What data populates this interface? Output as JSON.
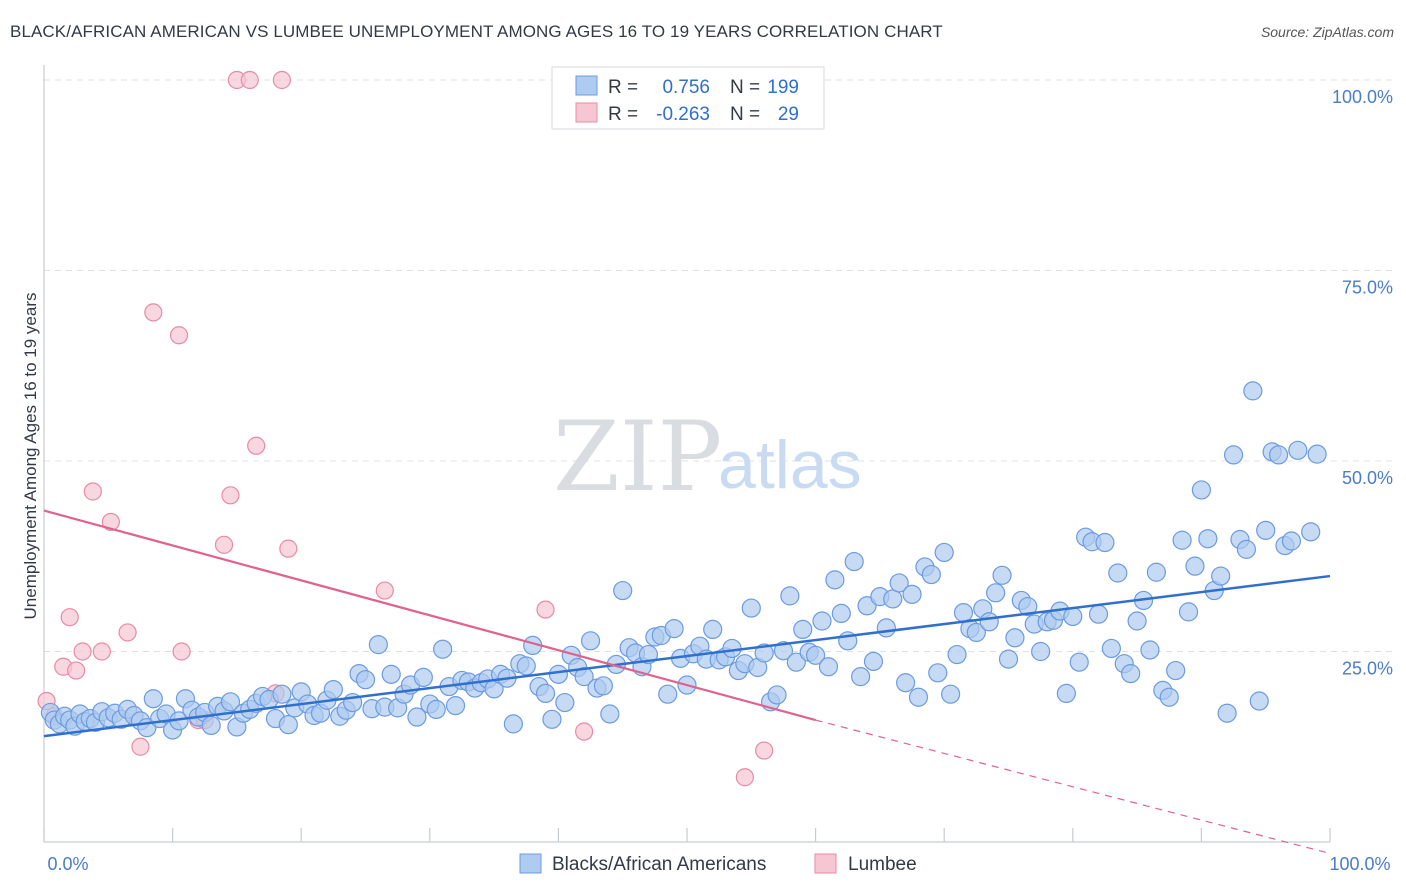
{
  "title": "BLACK/AFRICAN AMERICAN VS LUMBEE UNEMPLOYMENT AMONG AGES 16 TO 19 YEARS CORRELATION CHART",
  "source": "Source: ZipAtlas.com",
  "watermark": {
    "zip": "ZIP",
    "atlas": "atlas"
  },
  "colors": {
    "blue_fill": "#aecbf0",
    "blue_stroke": "#6b9be0",
    "blue_line": "#2f6fcf",
    "pink_fill": "#f7c6d3",
    "pink_stroke": "#e88aa6",
    "pink_line": "#e0628f",
    "grid": "#dde1e6",
    "tick_text": "#4a7cc9"
  },
  "legend": {
    "rows": [
      {
        "r_label": "R =",
        "r_value": "0.756",
        "n_label": "N =",
        "n_value": "199"
      },
      {
        "r_label": "R =",
        "r_value": "-0.263",
        "n_label": "N =",
        "n_value": "29"
      }
    ]
  },
  "chart_data": {
    "type": "scatter",
    "title": "BLACK/AFRICAN AMERICAN VS LUMBEE UNEMPLOYMENT AMONG AGES 16 TO 19 YEARS CORRELATION CHART",
    "xlabel": "",
    "ylabel": "Unemployment Among Ages 16 to 19 years",
    "xlim": [
      0,
      100
    ],
    "ylim": [
      0,
      100
    ],
    "x_tick_labels": [
      "0.0%",
      "100.0%"
    ],
    "y_tick_labels": [
      "100.0%",
      "75.0%",
      "50.0%",
      "25.0%"
    ],
    "y_ticks": [
      100,
      75,
      50,
      25
    ],
    "grid": true,
    "legend_position": "bottom",
    "series": [
      {
        "name": "Blacks/African Americans",
        "color": "#aecbf0",
        "trend": {
          "x": [
            0,
            100
          ],
          "y": [
            13.9,
            34.9
          ],
          "dashed_from": null
        },
        "points": [
          [
            0.5,
            17.0
          ],
          [
            0.8,
            16.0
          ],
          [
            1.2,
            15.5
          ],
          [
            1.6,
            16.5
          ],
          [
            2.0,
            16.0
          ],
          [
            2.4,
            15.2
          ],
          [
            2.8,
            16.8
          ],
          [
            3.2,
            15.8
          ],
          [
            3.6,
            16.2
          ],
          [
            4.0,
            15.7
          ],
          [
            4.5,
            17.1
          ],
          [
            5.0,
            16.3
          ],
          [
            5.5,
            16.9
          ],
          [
            6.0,
            16.1
          ],
          [
            6.5,
            17.4
          ],
          [
            7.0,
            16.6
          ],
          [
            7.5,
            15.9
          ],
          [
            8.0,
            15.0
          ],
          [
            8.5,
            18.8
          ],
          [
            9.0,
            16.2
          ],
          [
            9.5,
            16.8
          ],
          [
            10.0,
            14.7
          ],
          [
            10.5,
            15.9
          ],
          [
            11.0,
            18.8
          ],
          [
            11.5,
            17.3
          ],
          [
            12.0,
            16.4
          ],
          [
            12.5,
            17.0
          ],
          [
            13.0,
            15.3
          ],
          [
            13.5,
            17.8
          ],
          [
            14.0,
            17.2
          ],
          [
            14.5,
            18.4
          ],
          [
            15.0,
            15.1
          ],
          [
            15.5,
            16.9
          ],
          [
            16.0,
            17.4
          ],
          [
            16.5,
            18.2
          ],
          [
            17.0,
            19.1
          ],
          [
            17.5,
            18.7
          ],
          [
            18.0,
            16.2
          ],
          [
            18.5,
            19.4
          ],
          [
            19.0,
            15.4
          ],
          [
            19.5,
            17.6
          ],
          [
            20.0,
            19.7
          ],
          [
            20.5,
            18.1
          ],
          [
            21.0,
            16.6
          ],
          [
            21.5,
            16.9
          ],
          [
            22.0,
            18.6
          ],
          [
            22.5,
            20.0
          ],
          [
            23.0,
            16.5
          ],
          [
            23.5,
            17.3
          ],
          [
            24.0,
            18.3
          ],
          [
            24.5,
            22.1
          ],
          [
            25.0,
            21.3
          ],
          [
            25.5,
            17.5
          ],
          [
            26.0,
            25.9
          ],
          [
            26.5,
            17.7
          ],
          [
            27.0,
            22.0
          ],
          [
            27.5,
            17.6
          ],
          [
            28.0,
            19.4
          ],
          [
            28.5,
            20.6
          ],
          [
            29.0,
            16.4
          ],
          [
            29.5,
            21.6
          ],
          [
            30.0,
            18.1
          ],
          [
            30.5,
            17.4
          ],
          [
            31.0,
            25.3
          ],
          [
            31.5,
            20.4
          ],
          [
            32.0,
            17.9
          ],
          [
            32.5,
            21.2
          ],
          [
            33.0,
            21.0
          ],
          [
            33.5,
            20.2
          ],
          [
            34.0,
            20.9
          ],
          [
            34.5,
            21.4
          ],
          [
            35.0,
            20.1
          ],
          [
            35.5,
            22.0
          ],
          [
            36.0,
            21.5
          ],
          [
            36.5,
            15.5
          ],
          [
            37.0,
            23.4
          ],
          [
            37.5,
            23.1
          ],
          [
            38.0,
            25.8
          ],
          [
            38.5,
            20.4
          ],
          [
            39.0,
            19.5
          ],
          [
            39.5,
            16.1
          ],
          [
            40.0,
            22.0
          ],
          [
            40.5,
            18.3
          ],
          [
            41.0,
            24.5
          ],
          [
            41.5,
            22.9
          ],
          [
            42.0,
            21.7
          ],
          [
            42.5,
            26.4
          ],
          [
            43.0,
            20.2
          ],
          [
            43.5,
            20.5
          ],
          [
            44.0,
            16.8
          ],
          [
            44.5,
            23.3
          ],
          [
            45.0,
            33.0
          ],
          [
            45.5,
            25.5
          ],
          [
            46.0,
            24.8
          ],
          [
            46.5,
            23.0
          ],
          [
            47.0,
            24.6
          ],
          [
            47.5,
            26.9
          ],
          [
            48.0,
            27.1
          ],
          [
            48.5,
            19.4
          ],
          [
            49.0,
            28.0
          ],
          [
            49.5,
            24.1
          ],
          [
            50.0,
            20.6
          ],
          [
            50.5,
            24.7
          ],
          [
            51.0,
            25.7
          ],
          [
            51.5,
            24.0
          ],
          [
            52.0,
            27.9
          ],
          [
            52.5,
            23.9
          ],
          [
            53.0,
            24.3
          ],
          [
            53.5,
            25.4
          ],
          [
            54.0,
            22.5
          ],
          [
            54.5,
            23.4
          ],
          [
            55.0,
            30.7
          ],
          [
            55.5,
            22.9
          ],
          [
            56.0,
            24.8
          ],
          [
            56.5,
            18.4
          ],
          [
            57.0,
            19.3
          ],
          [
            57.5,
            25.1
          ],
          [
            58.0,
            32.3
          ],
          [
            58.5,
            23.6
          ],
          [
            59.0,
            27.9
          ],
          [
            59.5,
            24.9
          ],
          [
            60.0,
            24.5
          ],
          [
            60.5,
            29.0
          ],
          [
            61.0,
            23.0
          ],
          [
            61.5,
            34.4
          ],
          [
            62.0,
            30.0
          ],
          [
            62.5,
            26.4
          ],
          [
            63.0,
            36.8
          ],
          [
            63.5,
            21.7
          ],
          [
            64.0,
            31.0
          ],
          [
            64.5,
            23.7
          ],
          [
            65.0,
            32.2
          ],
          [
            65.5,
            28.1
          ],
          [
            66.0,
            31.9
          ],
          [
            66.5,
            34.0
          ],
          [
            67.0,
            20.9
          ],
          [
            67.5,
            32.5
          ],
          [
            68.0,
            19.0
          ],
          [
            68.5,
            36.1
          ],
          [
            69.0,
            35.1
          ],
          [
            69.5,
            22.2
          ],
          [
            70.0,
            38.0
          ],
          [
            70.5,
            19.4
          ],
          [
            71.0,
            24.6
          ],
          [
            71.5,
            30.1
          ],
          [
            72.0,
            28.0
          ],
          [
            72.5,
            27.5
          ],
          [
            73.0,
            30.6
          ],
          [
            73.5,
            28.9
          ],
          [
            74.0,
            32.7
          ],
          [
            74.5,
            35.0
          ],
          [
            75.0,
            24.0
          ],
          [
            75.5,
            26.8
          ],
          [
            76.0,
            31.7
          ],
          [
            76.5,
            30.9
          ],
          [
            77.0,
            28.6
          ],
          [
            77.5,
            25.0
          ],
          [
            78.0,
            28.9
          ],
          [
            78.5,
            29.1
          ],
          [
            79.0,
            30.3
          ],
          [
            79.5,
            19.5
          ],
          [
            80.0,
            29.6
          ],
          [
            80.5,
            23.6
          ],
          [
            81.0,
            40.0
          ],
          [
            81.5,
            39.4
          ],
          [
            82.0,
            29.9
          ],
          [
            82.5,
            39.3
          ],
          [
            83.0,
            25.4
          ],
          [
            83.5,
            35.3
          ],
          [
            84.0,
            23.4
          ],
          [
            84.5,
            22.1
          ],
          [
            85.0,
            29.0
          ],
          [
            85.5,
            31.7
          ],
          [
            86.0,
            25.2
          ],
          [
            86.5,
            35.4
          ],
          [
            87.0,
            19.9
          ],
          [
            87.5,
            19.0
          ],
          [
            88.0,
            22.5
          ],
          [
            88.5,
            39.6
          ],
          [
            89.0,
            30.2
          ],
          [
            89.5,
            36.2
          ],
          [
            90.0,
            46.2
          ],
          [
            90.5,
            39.8
          ],
          [
            91.0,
            33.0
          ],
          [
            91.5,
            34.9
          ],
          [
            92.0,
            16.9
          ],
          [
            92.5,
            50.8
          ],
          [
            93.0,
            39.7
          ],
          [
            93.5,
            38.4
          ],
          [
            94.0,
            59.2
          ],
          [
            94.5,
            18.5
          ],
          [
            95.0,
            40.9
          ],
          [
            95.5,
            51.2
          ],
          [
            96.0,
            50.8
          ],
          [
            96.5,
            38.9
          ],
          [
            97.0,
            39.5
          ],
          [
            99.0,
            50.9
          ],
          [
            98.5,
            40.7
          ],
          [
            97.5,
            51.4
          ]
        ]
      },
      {
        "name": "Lumbee",
        "color": "#f7c6d3",
        "trend": {
          "x": [
            0,
            60
          ],
          "y": [
            43.5,
            16.0
          ],
          "dashed_to": [
            100,
            -1.5
          ]
        },
        "points": [
          [
            0.2,
            18.5
          ],
          [
            0.8,
            16.5
          ],
          [
            1.5,
            23.0
          ],
          [
            2.0,
            29.5
          ],
          [
            2.5,
            22.5
          ],
          [
            3.0,
            25.0
          ],
          [
            3.8,
            46.0
          ],
          [
            4.5,
            25.0
          ],
          [
            5.2,
            42.0
          ],
          [
            6.5,
            27.5
          ],
          [
            7.5,
            12.5
          ],
          [
            8.5,
            69.5
          ],
          [
            10.5,
            66.5
          ],
          [
            10.7,
            25.0
          ],
          [
            12.0,
            16.0
          ],
          [
            12.5,
            16.0
          ],
          [
            14.0,
            39.0
          ],
          [
            14.5,
            45.5
          ],
          [
            15.0,
            100.0
          ],
          [
            16.5,
            52.0
          ],
          [
            16.0,
            100.0
          ],
          [
            18.5,
            100.0
          ],
          [
            18.0,
            19.5
          ],
          [
            19.0,
            38.5
          ],
          [
            26.5,
            33.0
          ],
          [
            39.0,
            30.5
          ],
          [
            42.0,
            14.5
          ],
          [
            54.5,
            8.5
          ],
          [
            56.0,
            12.0
          ]
        ]
      }
    ]
  },
  "bottom_legend": [
    "Blacks/African Americans",
    "Lumbee"
  ]
}
